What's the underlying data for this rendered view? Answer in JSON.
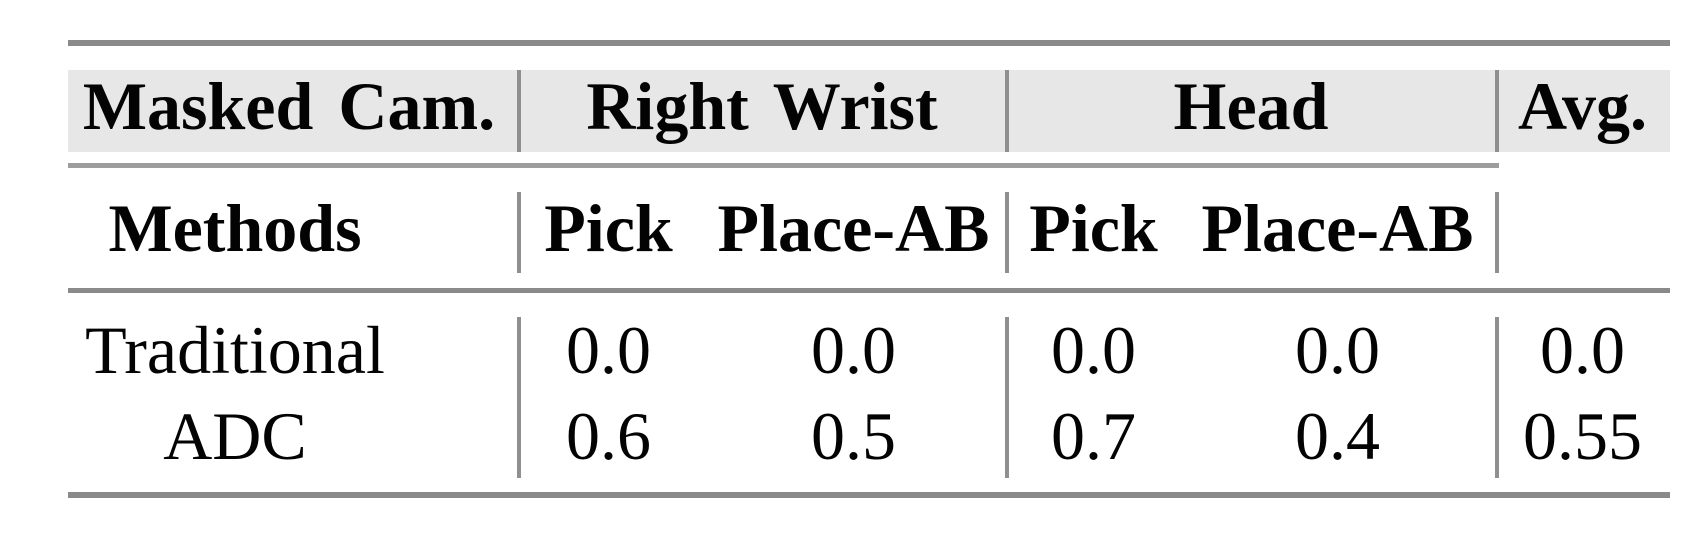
{
  "table": {
    "group_header": {
      "col1": "Masked Cam.",
      "group1": "Right Wrist",
      "group2": "Head",
      "avg": "Avg."
    },
    "sub_header": {
      "col1": "Methods",
      "group1": [
        "Pick",
        "Place-AB"
      ],
      "group2": [
        "Pick",
        "Place-AB"
      ]
    },
    "rows": [
      {
        "method": "Traditional",
        "values": [
          "0.0",
          "0.0",
          "0.0",
          "0.0",
          "0.0"
        ]
      },
      {
        "method": "ADC",
        "values": [
          "0.6",
          "0.5",
          "0.7",
          "0.4",
          "0.55"
        ]
      }
    ]
  },
  "chart_data": {
    "type": "table",
    "title": "",
    "column_groups": [
      "Masked Cam.",
      "Right Wrist",
      "Right Wrist",
      "Head",
      "Head",
      "Avg."
    ],
    "columns": [
      "Methods",
      "Pick",
      "Place-AB",
      "Pick",
      "Place-AB",
      "Avg."
    ],
    "rows": [
      [
        "Traditional",
        0.0,
        0.0,
        0.0,
        0.0,
        0.0
      ],
      [
        "ADC",
        0.6,
        0.5,
        0.7,
        0.4,
        0.55
      ]
    ]
  },
  "colors": {
    "header_band_bg": "#e7e7e7",
    "thick_rule": "#8a8a8a",
    "thin_rule": "#9d9d9d",
    "column_divider": "#8f8f8f",
    "text": "#030303",
    "page_bg": "#ffffff"
  }
}
